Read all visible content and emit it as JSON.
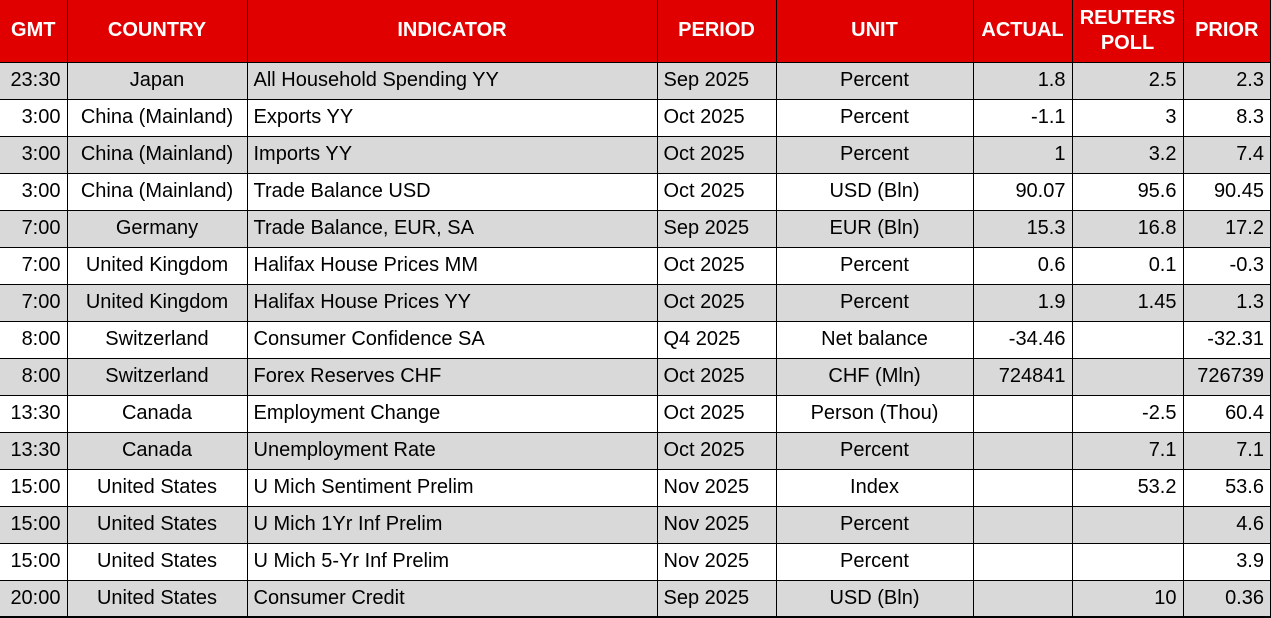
{
  "colors": {
    "header_bg": "#E00000",
    "header_text": "#FFFFFF",
    "row_alt_bg": "#D9D9D9",
    "row_bg": "#FFFFFF",
    "border": "#000000",
    "text": "#000000"
  },
  "chart_data": {
    "type": "table",
    "columns": [
      {
        "key": "gmt",
        "label": "GMT"
      },
      {
        "key": "country",
        "label": "COUNTRY"
      },
      {
        "key": "indicator",
        "label": "INDICATOR"
      },
      {
        "key": "period",
        "label": "PERIOD"
      },
      {
        "key": "unit",
        "label": "UNIT"
      },
      {
        "key": "actual",
        "label": "ACTUAL"
      },
      {
        "key": "poll",
        "label": "REUTERS POLL"
      },
      {
        "key": "prior",
        "label": "PRIOR"
      }
    ],
    "rows": [
      {
        "gmt": "23:30",
        "country": "Japan",
        "indicator": "All Household Spending YY",
        "period": "Sep 2025",
        "unit": "Percent",
        "actual": "1.8",
        "poll": "2.5",
        "prior": "2.3"
      },
      {
        "gmt": "3:00",
        "country": "China (Mainland)",
        "indicator": "Exports YY",
        "period": "Oct 2025",
        "unit": "Percent",
        "actual": "-1.1",
        "poll": "3",
        "prior": "8.3"
      },
      {
        "gmt": "3:00",
        "country": "China (Mainland)",
        "indicator": "Imports YY",
        "period": "Oct 2025",
        "unit": "Percent",
        "actual": "1",
        "poll": "3.2",
        "prior": "7.4"
      },
      {
        "gmt": "3:00",
        "country": "China (Mainland)",
        "indicator": "Trade Balance USD",
        "period": "Oct 2025",
        "unit": "USD (Bln)",
        "actual": "90.07",
        "poll": "95.6",
        "prior": "90.45"
      },
      {
        "gmt": "7:00",
        "country": "Germany",
        "indicator": "Trade Balance, EUR, SA",
        "period": "Sep 2025",
        "unit": "EUR (Bln)",
        "actual": "15.3",
        "poll": "16.8",
        "prior": "17.2"
      },
      {
        "gmt": "7:00",
        "country": "United Kingdom",
        "indicator": "Halifax House Prices MM",
        "period": "Oct 2025",
        "unit": "Percent",
        "actual": "0.6",
        "poll": "0.1",
        "prior": "-0.3"
      },
      {
        "gmt": "7:00",
        "country": "United Kingdom",
        "indicator": "Halifax House Prices YY",
        "period": "Oct 2025",
        "unit": "Percent",
        "actual": "1.9",
        "poll": "1.45",
        "prior": "1.3"
      },
      {
        "gmt": "8:00",
        "country": "Switzerland",
        "indicator": "Consumer Confidence SA",
        "period": "Q4 2025",
        "unit": "Net balance",
        "actual": "-34.46",
        "poll": "",
        "prior": "-32.31"
      },
      {
        "gmt": "8:00",
        "country": "Switzerland",
        "indicator": "Forex Reserves CHF",
        "period": "Oct 2025",
        "unit": "CHF (Mln)",
        "actual": "724841",
        "poll": "",
        "prior": "726739"
      },
      {
        "gmt": "13:30",
        "country": "Canada",
        "indicator": "Employment Change",
        "period": "Oct 2025",
        "unit": "Person (Thou)",
        "actual": "",
        "poll": "-2.5",
        "prior": "60.4"
      },
      {
        "gmt": "13:30",
        "country": "Canada",
        "indicator": "Unemployment Rate",
        "period": "Oct 2025",
        "unit": "Percent",
        "actual": "",
        "poll": "7.1",
        "prior": "7.1"
      },
      {
        "gmt": "15:00",
        "country": "United States",
        "indicator": "U Mich Sentiment Prelim",
        "period": "Nov 2025",
        "unit": "Index",
        "actual": "",
        "poll": "53.2",
        "prior": "53.6"
      },
      {
        "gmt": "15:00",
        "country": "United States",
        "indicator": "U Mich 1Yr Inf Prelim",
        "period": "Nov 2025",
        "unit": "Percent",
        "actual": "",
        "poll": "",
        "prior": "4.6"
      },
      {
        "gmt": "15:00",
        "country": "United States",
        "indicator": "U Mich 5-Yr Inf Prelim",
        "period": "Nov 2025",
        "unit": "Percent",
        "actual": "",
        "poll": "",
        "prior": "3.9"
      },
      {
        "gmt": "20:00",
        "country": "United States",
        "indicator": "Consumer Credit",
        "period": "Sep 2025",
        "unit": "USD (Bln)",
        "actual": "",
        "poll": "10",
        "prior": "0.36"
      }
    ]
  }
}
